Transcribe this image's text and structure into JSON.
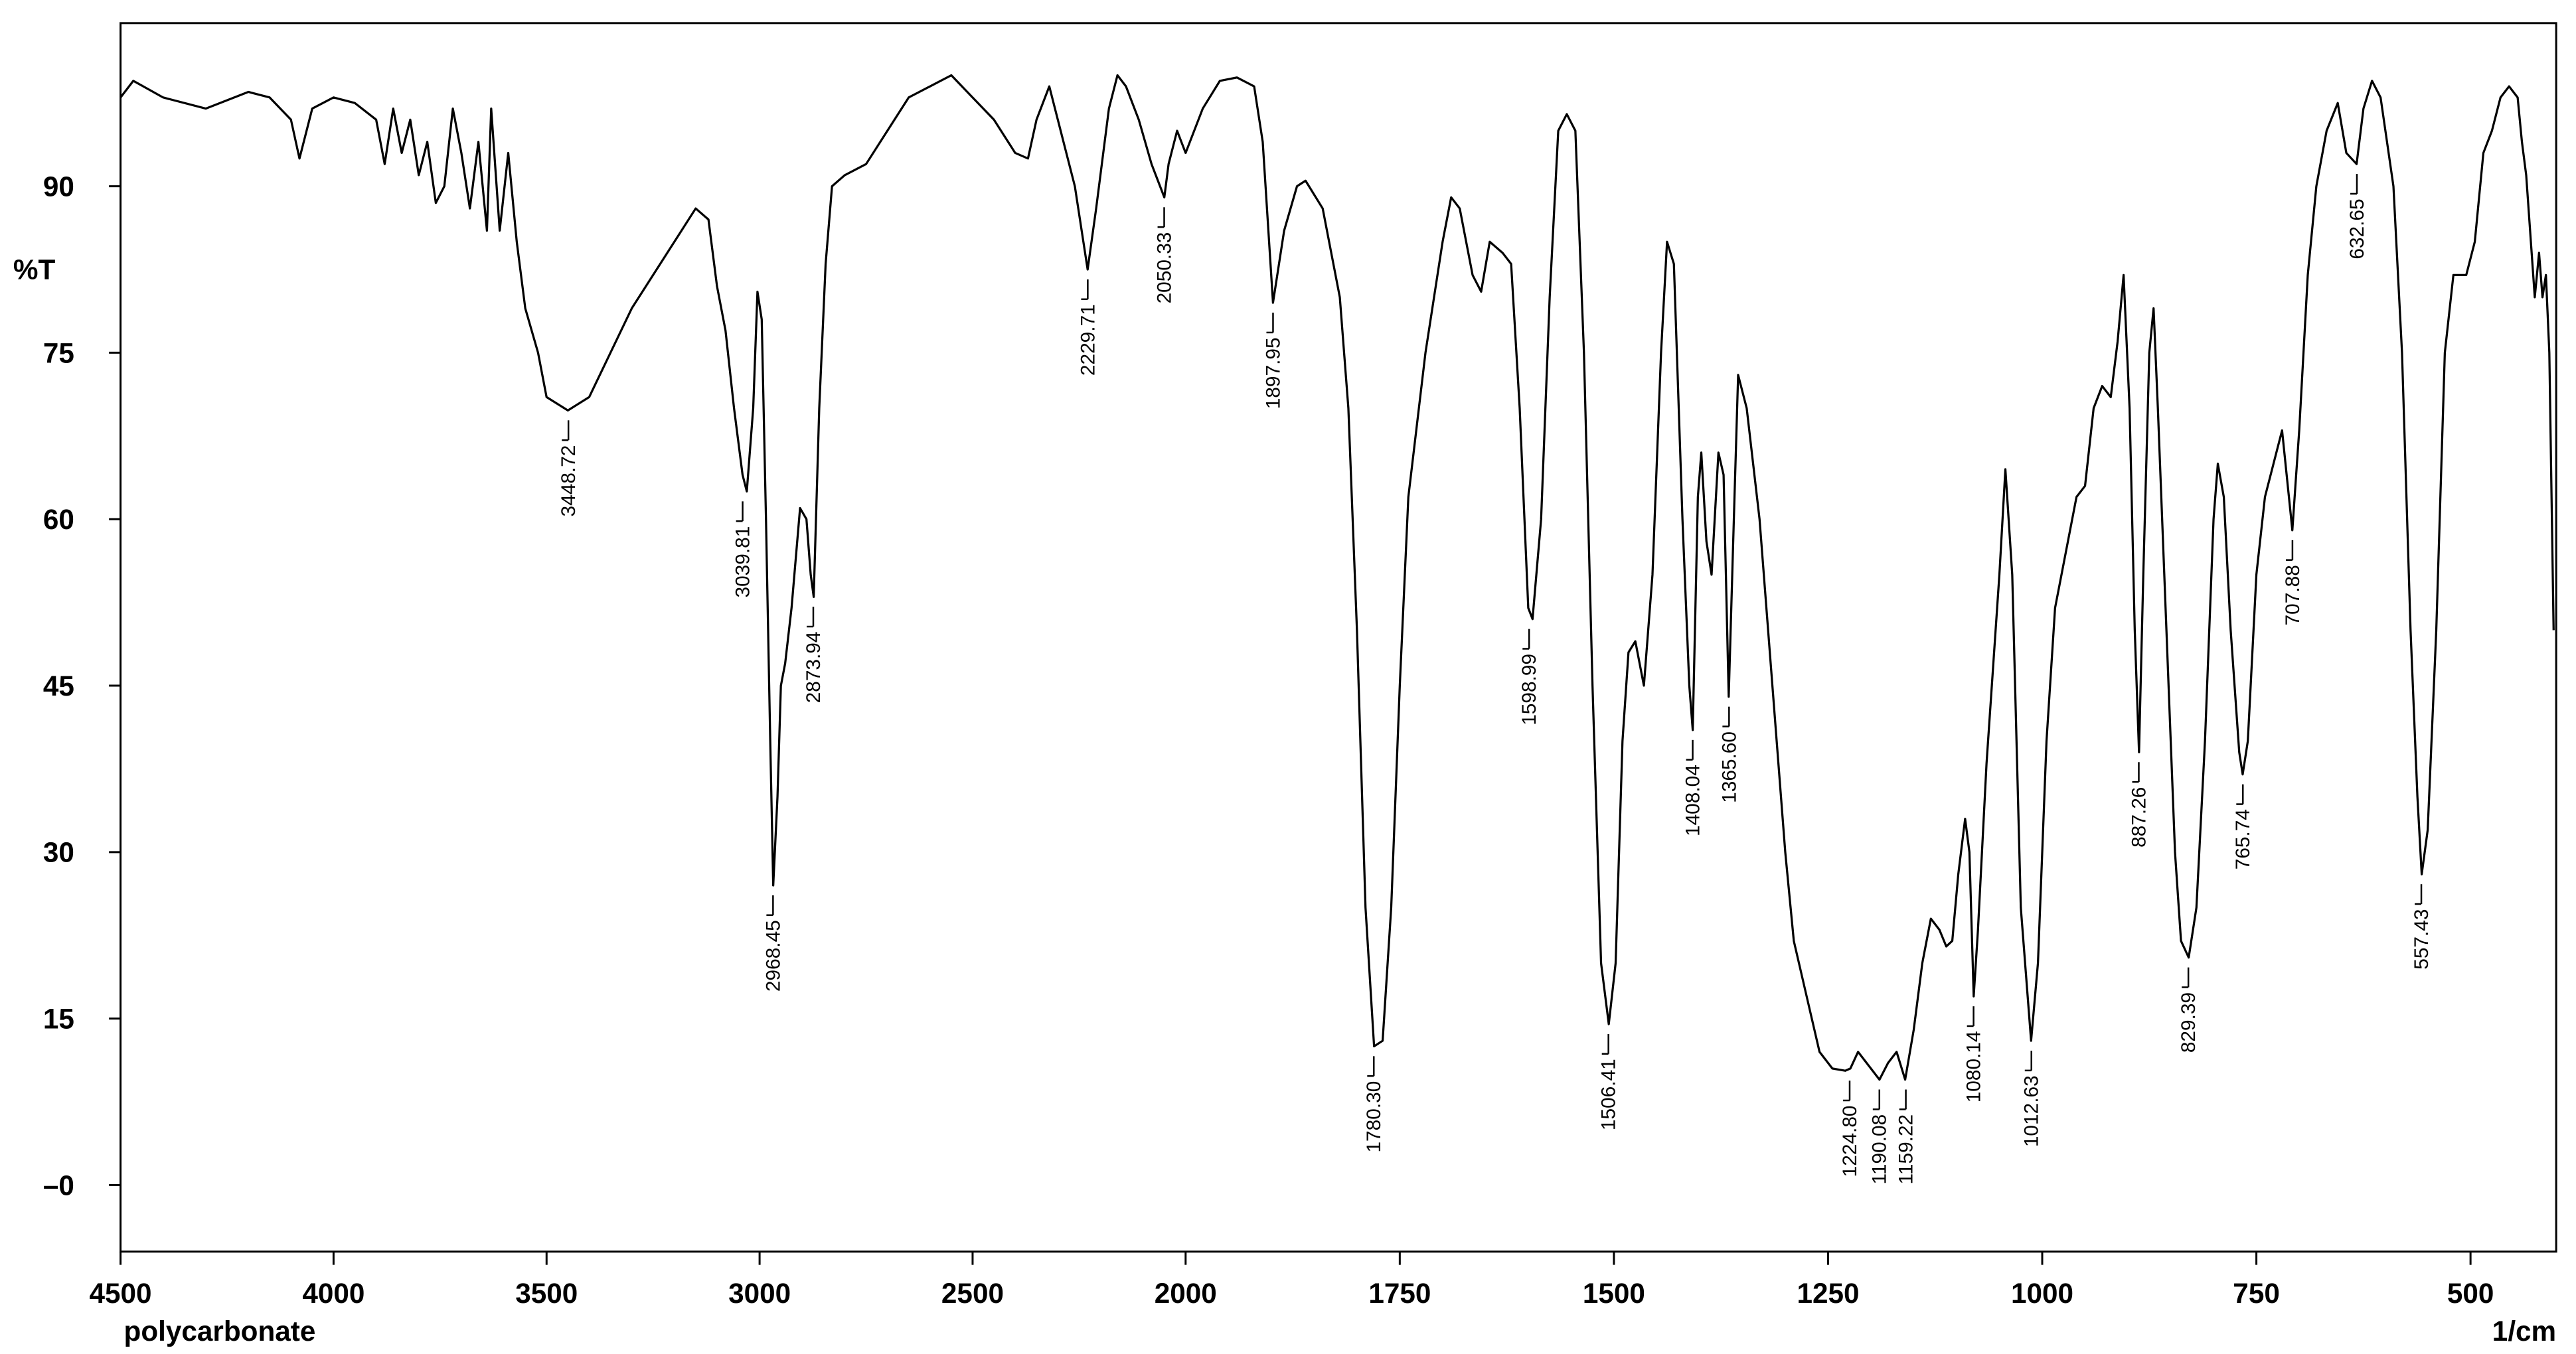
{
  "chart_data": {
    "type": "line",
    "y_label": "%T",
    "x_label": "1/cm",
    "sample": "polycarbonate",
    "xlim": [
      4500,
      400
    ],
    "x_scale_break": 2000,
    "ylim": [
      -6,
      104.7
    ],
    "xticks": [
      4500,
      4000,
      3500,
      3000,
      2500,
      2000,
      1750,
      1500,
      1250,
      1000,
      750,
      500
    ],
    "yticks": [
      90,
      75,
      60,
      45,
      30,
      15,
      {
        "value": 0,
        "label": "–0"
      }
    ],
    "x": [
      4500,
      4470,
      4400,
      4300,
      4200,
      4150,
      4100,
      4080,
      4050,
      4000,
      3950,
      3900,
      3880,
      3860,
      3840,
      3820,
      3800,
      3780,
      3760,
      3740,
      3720,
      3700,
      3680,
      3660,
      3640,
      3630,
      3610,
      3590,
      3570,
      3550,
      3520,
      3500,
      3450,
      3400,
      3350,
      3300,
      3250,
      3200,
      3150,
      3120,
      3100,
      3080,
      3060,
      3040,
      3030,
      3015,
      3005,
      2995,
      2985,
      2975,
      2968,
      2958,
      2950,
      2940,
      2925,
      2905,
      2890,
      2880,
      2873,
      2860,
      2845,
      2830,
      2800,
      2750,
      2700,
      2650,
      2600,
      2550,
      2500,
      2450,
      2400,
      2370,
      2350,
      2320,
      2300,
      2260,
      2240,
      2230,
      2210,
      2180,
      2160,
      2140,
      2110,
      2080,
      2060,
      2050,
      2040,
      2020,
      2000,
      1980,
      1960,
      1940,
      1920,
      1910,
      1898,
      1885,
      1870,
      1860,
      1840,
      1820,
      1810,
      1800,
      1790,
      1780,
      1770,
      1760,
      1750,
      1740,
      1720,
      1700,
      1690,
      1680,
      1665,
      1655,
      1645,
      1630,
      1620,
      1610,
      1600,
      1595,
      1585,
      1575,
      1565,
      1555,
      1545,
      1535,
      1525,
      1515,
      1506,
      1498,
      1490,
      1483,
      1475,
      1465,
      1455,
      1445,
      1438,
      1430,
      1420,
      1412,
      1408,
      1402,
      1398,
      1392,
      1386,
      1378,
      1372,
      1366,
      1360,
      1355,
      1345,
      1330,
      1315,
      1300,
      1290,
      1275,
      1260,
      1245,
      1230,
      1224,
      1215,
      1205,
      1190,
      1180,
      1170,
      1160,
      1150,
      1140,
      1130,
      1120,
      1112,
      1105,
      1098,
      1090,
      1085,
      1080,
      1075,
      1065,
      1050,
      1043,
      1035,
      1025,
      1013,
      1005,
      995,
      985,
      970,
      960,
      950,
      940,
      930,
      920,
      912,
      905,
      898,
      892,
      887,
      882,
      875,
      870,
      865,
      855,
      845,
      838,
      829,
      820,
      810,
      800,
      795,
      788,
      780,
      770,
      766,
      760,
      750,
      740,
      730,
      720,
      712,
      708,
      700,
      690,
      680,
      668,
      655,
      645,
      633,
      625,
      615,
      605,
      590,
      580,
      570,
      562,
      557,
      550,
      540,
      530,
      520,
      505,
      495,
      485,
      475,
      465,
      455,
      445,
      440,
      435,
      425,
      420,
      416,
      412,
      408,
      403
    ],
    "series": [
      {
        "name": "polycarbonate",
        "color": "#000000",
        "values": [
          98,
          99.5,
          98,
          97,
          98.5,
          98,
          96,
          92.5,
          97,
          98,
          97.5,
          96,
          92,
          97,
          93,
          96,
          91,
          94,
          88.5,
          90,
          97,
          93,
          88,
          94,
          86,
          97,
          86,
          93,
          85,
          79,
          75,
          71,
          69.8,
          71,
          75,
          79,
          82,
          85,
          88,
          87,
          81,
          77,
          70,
          64,
          62.5,
          70,
          80.5,
          78,
          60,
          40,
          27,
          35,
          45,
          47,
          52,
          61,
          60,
          55,
          53,
          70,
          83,
          90,
          91,
          92,
          95,
          98,
          99,
          100,
          98,
          96,
          93,
          92.5,
          96,
          99,
          96,
          90,
          85,
          82.5,
          88,
          97,
          100,
          99,
          96,
          92,
          90,
          89,
          92,
          95,
          93,
          97,
          99.5,
          99.8,
          99,
          94,
          79.5,
          86,
          90,
          90.5,
          88,
          80,
          70,
          50,
          25,
          12.5,
          13,
          25,
          45,
          62,
          75,
          85,
          89,
          88,
          82,
          80.5,
          85,
          84,
          83,
          70,
          52,
          51,
          60,
          80,
          95,
          96.5,
          95,
          75,
          45,
          20,
          14.5,
          20,
          40,
          48,
          49,
          45,
          55,
          75,
          85,
          83,
          60,
          45,
          41,
          62,
          66,
          58,
          55,
          66,
          64,
          44,
          60,
          73,
          70,
          60,
          45,
          30,
          22,
          17,
          12,
          10.5,
          10.3,
          10.5,
          12,
          11,
          9.5,
          11,
          12,
          9.5,
          14,
          20,
          24,
          23,
          21.5,
          22,
          28,
          33,
          30,
          17,
          23,
          38,
          55,
          64.5,
          55,
          25,
          13,
          20,
          40,
          52,
          58,
          62,
          63,
          70,
          72,
          71,
          76,
          82,
          70,
          50,
          39,
          55,
          75,
          79,
          70,
          50,
          30,
          22,
          20.5,
          25,
          40,
          60,
          65,
          62,
          50,
          39,
          37,
          40,
          55,
          62,
          65,
          68,
          62,
          59,
          68,
          82,
          90,
          95,
          97.5,
          93,
          92,
          97,
          99.5,
          98,
          90,
          75,
          50,
          35,
          28,
          32,
          50,
          75,
          82,
          82,
          85,
          93,
          95,
          98,
          99,
          98,
          94,
          91,
          80,
          84,
          80,
          82,
          75,
          50
        ]
      }
    ],
    "annotations": [
      {
        "x": 3448.72,
        "y": 69.8,
        "label": "3448.72"
      },
      {
        "x": 3039.81,
        "y": 62.5,
        "label": "3039.81"
      },
      {
        "x": 2968.45,
        "y": 27,
        "label": "2968.45"
      },
      {
        "x": 2873.94,
        "y": 53,
        "label": "2873.94"
      },
      {
        "x": 2229.71,
        "y": 82.5,
        "label": "2229.71"
      },
      {
        "x": 2050.33,
        "y": 89,
        "label": "2050.33"
      },
      {
        "x": 1897.95,
        "y": 79.5,
        "label": "1897.95"
      },
      {
        "x": 1780.3,
        "y": 12.5,
        "label": "1780.30"
      },
      {
        "x": 1598.99,
        "y": 51,
        "label": "1598.99"
      },
      {
        "x": 1506.41,
        "y": 14.5,
        "label": "1506.41"
      },
      {
        "x": 1408.04,
        "y": 41,
        "label": "1408.04"
      },
      {
        "x": 1365.6,
        "y": 44,
        "label": "1365.60"
      },
      {
        "x": 1224.8,
        "y": 10.3,
        "label": "1224.80"
      },
      {
        "x": 1190.08,
        "y": 9.5,
        "label": "1190.08"
      },
      {
        "x": 1159.22,
        "y": 9.5,
        "label": "1159.22"
      },
      {
        "x": 1080.14,
        "y": 17,
        "label": "1080.14"
      },
      {
        "x": 1012.63,
        "y": 13,
        "label": "1012.63"
      },
      {
        "x": 887.26,
        "y": 39,
        "label": "887.26"
      },
      {
        "x": 829.39,
        "y": 20.5,
        "label": "829.39"
      },
      {
        "x": 765.74,
        "y": 37,
        "label": "765.74"
      },
      {
        "x": 707.88,
        "y": 59,
        "label": "707.88"
      },
      {
        "x": 632.65,
        "y": 92,
        "label": "632.65"
      },
      {
        "x": 557.43,
        "y": 28,
        "label": "557.43"
      }
    ]
  }
}
